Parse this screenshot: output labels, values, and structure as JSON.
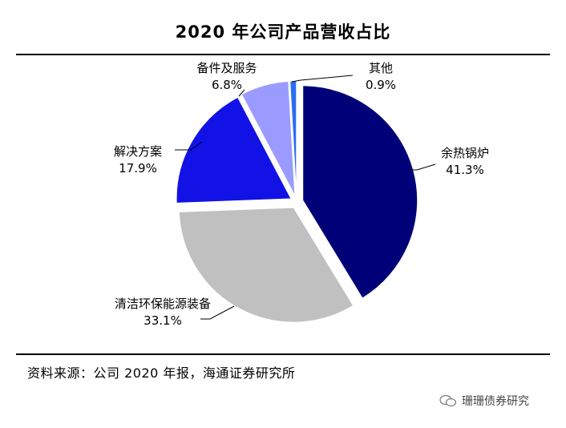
{
  "chart_data": {
    "type": "pie",
    "title": "2020 年公司产品营收占比",
    "slices": [
      {
        "label": "余热锅炉",
        "value": 41.3,
        "value_text": "41.3%",
        "color": "#000078"
      },
      {
        "label": "清洁环保能源装备",
        "value": 33.1,
        "value_text": "33.1%",
        "color": "#c0c0c0"
      },
      {
        "label": "解决方案",
        "value": 17.9,
        "value_text": "17.9%",
        "color": "#1212e6"
      },
      {
        "label": "备件及服务",
        "value": 6.8,
        "value_text": "6.8%",
        "color": "#9b9bff"
      },
      {
        "label": "其他",
        "value": 0.9,
        "value_text": "0.9%",
        "color": "#2a6df5"
      }
    ],
    "start": "12 o'clock",
    "direction": "clockwise",
    "exploded": true
  },
  "source": "资料来源：公司 2020 年报，海通证券研究所",
  "watermark": "珊珊债券研究"
}
